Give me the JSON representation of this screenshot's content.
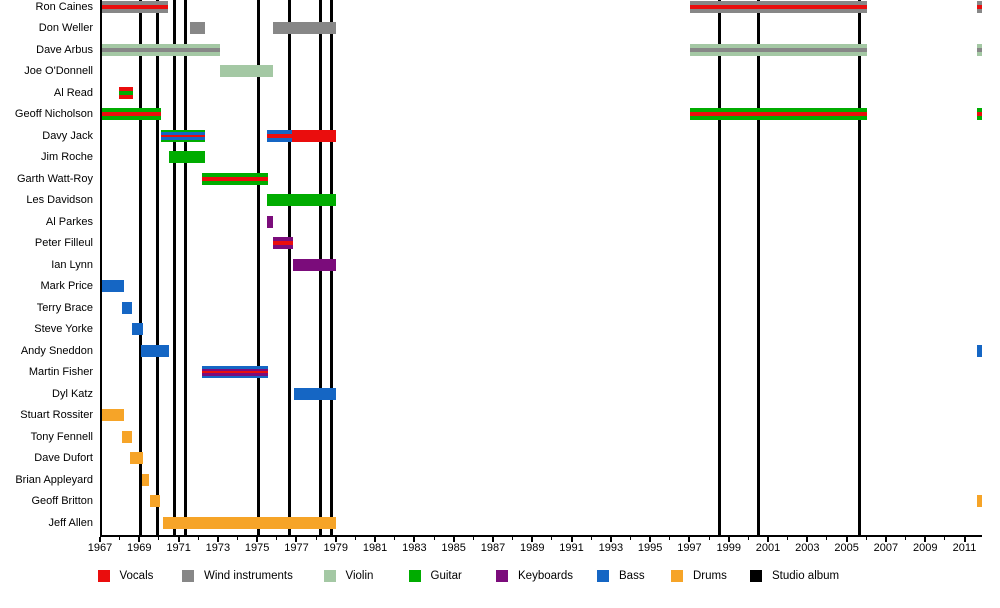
{
  "colors": {
    "vocals": "#ea0d0d",
    "wind": "#878787",
    "violin": "#a4c8a4",
    "guitar": "#00ac00",
    "keyboards": "#7b0c7b",
    "bass": "#1566c4",
    "drums": "#f6a428",
    "album": "#000000",
    "axis": "#000000",
    "background": "#ffffff"
  },
  "legend": {
    "items": [
      {
        "label": "Vocals",
        "color": "vocals"
      },
      {
        "label": "Wind instruments",
        "color": "wind"
      },
      {
        "label": "Violin",
        "color": "violin"
      },
      {
        "label": "Guitar",
        "color": "guitar"
      },
      {
        "label": "Keyboards",
        "color": "keyboards"
      },
      {
        "label": "Bass",
        "color": "bass"
      },
      {
        "label": "Drums",
        "color": "drums"
      },
      {
        "label": "Studio album",
        "color": "album"
      }
    ]
  },
  "chart_data": {
    "type": "timeline",
    "title": "",
    "x_axis": {
      "start": 1967,
      "end": 2011.95,
      "tick_step": 2,
      "labels": [
        "1967",
        "1969",
        "1971",
        "1973",
        "1975",
        "1977",
        "1979",
        "1981",
        "1983",
        "1985",
        "1987",
        "1989",
        "1991",
        "1993",
        "1995",
        "1997",
        "1999",
        "2001",
        "2003",
        "2005",
        "2007",
        "2009",
        "2011"
      ]
    },
    "studio_album_years": [
      1969.08,
      1969.95,
      1970.77,
      1971.35,
      1975.07,
      1976.62,
      1978.2,
      1978.76,
      1998.53,
      2000.49,
      2005.63
    ],
    "members": [
      {
        "name": "Ron Caines",
        "bars": [
          {
            "start": 1967.0,
            "end": 1970.46,
            "stripes": [
              "wind",
              "vocals",
              "wind"
            ]
          },
          {
            "start": 1997.03,
            "end": 2006.05,
            "stripes": [
              "wind",
              "vocals",
              "wind"
            ]
          },
          {
            "start": 2011.63,
            "end": 2011.95,
            "stripes": [
              "wind",
              "vocals",
              "wind"
            ]
          }
        ]
      },
      {
        "name": "Don Weller",
        "bars": [
          {
            "start": 1971.58,
            "end": 1972.34,
            "stripes": [
              "wind"
            ]
          },
          {
            "start": 1975.78,
            "end": 1979.0,
            "stripes": [
              "wind"
            ]
          }
        ]
      },
      {
        "name": "Dave Arbus",
        "bars": [
          {
            "start": 1967.0,
            "end": 1973.13,
            "stripes": [
              "violin",
              "wind",
              "violin"
            ]
          },
          {
            "start": 1997.03,
            "end": 2006.05,
            "stripes": [
              "violin",
              "wind",
              "violin"
            ]
          },
          {
            "start": 2011.63,
            "end": 2011.95,
            "stripes": [
              "violin",
              "wind",
              "violin"
            ]
          }
        ]
      },
      {
        "name": "Joe O'Donnell",
        "bars": [
          {
            "start": 1973.13,
            "end": 1975.78,
            "stripes": [
              "violin"
            ]
          }
        ]
      },
      {
        "name": "Al Read",
        "bars": [
          {
            "start": 1967.95,
            "end": 1968.7,
            "stripes": [
              "vocals",
              "guitar",
              "vocals"
            ]
          }
        ]
      },
      {
        "name": "Geoff Nicholson",
        "bars": [
          {
            "start": 1967.0,
            "end": 1970.13,
            "stripes": [
              "guitar",
              "vocals",
              "guitar"
            ]
          },
          {
            "start": 1997.03,
            "end": 2006.05,
            "stripes": [
              "guitar",
              "vocals",
              "guitar"
            ]
          },
          {
            "start": 2011.63,
            "end": 2011.95,
            "stripes": [
              "guitar",
              "vocals",
              "guitar"
            ]
          }
        ]
      },
      {
        "name": "Davy Jack",
        "bars": [
          {
            "start": 1970.13,
            "end": 1972.32,
            "stripes": [
              "guitar",
              "bass",
              "vocals",
              "bass",
              "guitar"
            ]
          },
          {
            "start": 1975.5,
            "end": 1976.75,
            "stripes": [
              "bass",
              "vocals",
              "bass"
            ]
          },
          {
            "start": 1976.75,
            "end": 1979.0,
            "stripes": [
              "vocals"
            ]
          }
        ]
      },
      {
        "name": "Jim Roche",
        "bars": [
          {
            "start": 1970.5,
            "end": 1972.32,
            "stripes": [
              "guitar"
            ]
          }
        ]
      },
      {
        "name": "Garth Watt-Roy",
        "bars": [
          {
            "start": 1972.19,
            "end": 1975.55,
            "stripes": [
              "guitar",
              "vocals",
              "guitar"
            ]
          }
        ]
      },
      {
        "name": "Les Davidson",
        "bars": [
          {
            "start": 1975.5,
            "end": 1979.0,
            "stripes": [
              "guitar"
            ]
          }
        ]
      },
      {
        "name": "Al Parkes",
        "bars": [
          {
            "start": 1975.5,
            "end": 1975.82,
            "stripes": [
              "keyboards"
            ]
          }
        ]
      },
      {
        "name": "Peter Filleul",
        "bars": [
          {
            "start": 1975.82,
            "end": 1976.8,
            "stripes": [
              "keyboards",
              "vocals",
              "keyboards"
            ]
          }
        ]
      },
      {
        "name": "Ian Lynn",
        "bars": [
          {
            "start": 1976.8,
            "end": 1979.0,
            "stripes": [
              "keyboards"
            ]
          }
        ]
      },
      {
        "name": "Mark Price",
        "bars": [
          {
            "start": 1967.1,
            "end": 1968.2,
            "stripes": [
              "bass"
            ]
          }
        ]
      },
      {
        "name": "Terry Brace",
        "bars": [
          {
            "start": 1968.12,
            "end": 1968.63,
            "stripes": [
              "bass"
            ]
          }
        ]
      },
      {
        "name": "Steve Yorke",
        "bars": [
          {
            "start": 1968.63,
            "end": 1969.2,
            "stripes": [
              "bass"
            ]
          }
        ]
      },
      {
        "name": "Andy Sneddon",
        "bars": [
          {
            "start": 1969.1,
            "end": 1970.5,
            "stripes": [
              "bass"
            ]
          },
          {
            "start": 2011.63,
            "end": 2011.95,
            "stripes": [
              "bass"
            ]
          }
        ]
      },
      {
        "name": "Martin Fisher",
        "bars": [
          {
            "start": 1972.19,
            "end": 1975.55,
            "stripes": [
              "bass",
              "keyboards",
              "vocals",
              "keyboards",
              "bass"
            ]
          }
        ]
      },
      {
        "name": "Dyl Katz",
        "bars": [
          {
            "start": 1976.87,
            "end": 1979.0,
            "stripes": [
              "bass"
            ]
          }
        ]
      },
      {
        "name": "Stuart Rossiter",
        "bars": [
          {
            "start": 1967.1,
            "end": 1968.2,
            "stripes": [
              "drums"
            ]
          }
        ]
      },
      {
        "name": "Tony Fennell",
        "bars": [
          {
            "start": 1968.12,
            "end": 1968.63,
            "stripes": [
              "drums"
            ]
          }
        ]
      },
      {
        "name": "Dave Dufort",
        "bars": [
          {
            "start": 1968.55,
            "end": 1969.2,
            "stripes": [
              "drums"
            ]
          }
        ]
      },
      {
        "name": "Brian Appleyard",
        "bars": [
          {
            "start": 1969.12,
            "end": 1969.52,
            "stripes": [
              "drums"
            ]
          }
        ]
      },
      {
        "name": "Geoff Britton",
        "bars": [
          {
            "start": 1969.52,
            "end": 1970.06,
            "stripes": [
              "drums"
            ]
          },
          {
            "start": 2011.63,
            "end": 2011.95,
            "stripes": [
              "drums"
            ]
          }
        ]
      },
      {
        "name": "Jeff Allen",
        "bars": [
          {
            "start": 1970.2,
            "end": 1979.0,
            "stripes": [
              "drums"
            ]
          }
        ]
      }
    ]
  }
}
